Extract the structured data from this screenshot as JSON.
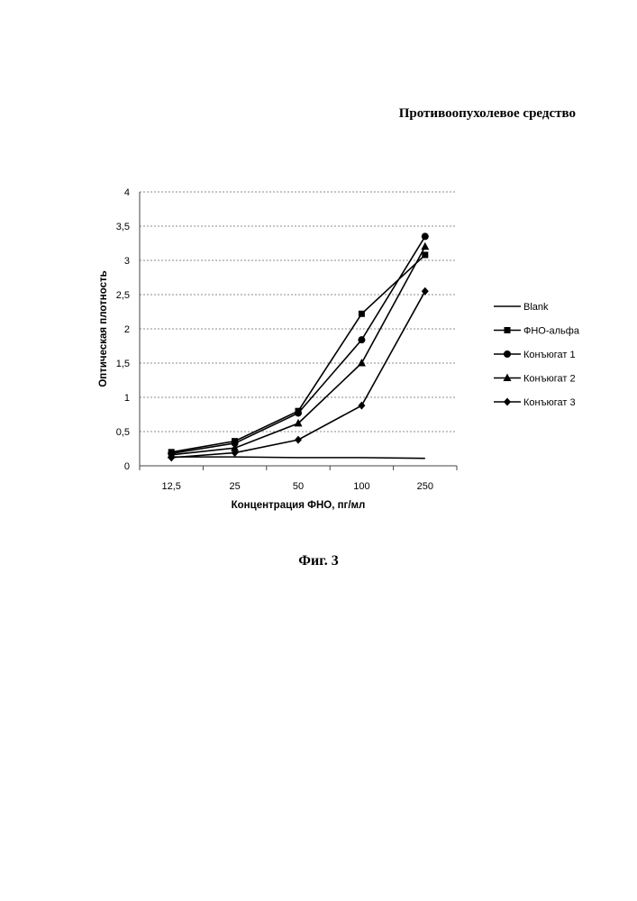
{
  "page": {
    "header": "Противоопухолевое средство",
    "figure_caption": "Фиг. 3"
  },
  "chart_data": {
    "type": "line",
    "title": "",
    "xlabel": "Концентрация ФНО, пг/мл",
    "ylabel": "Оптическая плотность",
    "categories": [
      "12,5",
      "25",
      "50",
      "100",
      "250"
    ],
    "ylim": [
      0,
      4
    ],
    "yticks": [
      "0",
      "0,5",
      "1",
      "1,5",
      "2",
      "2,5",
      "3",
      "3,5",
      "4"
    ],
    "grid": true,
    "legend_position": "right",
    "series": [
      {
        "name": "Blank",
        "marker": "none",
        "values": [
          0.13,
          0.13,
          0.12,
          0.12,
          0.11
        ]
      },
      {
        "name": "ФНО-альфа",
        "marker": "square",
        "values": [
          0.2,
          0.36,
          0.8,
          2.22,
          3.08
        ]
      },
      {
        "name": "Конъюгат 1",
        "marker": "circle",
        "values": [
          0.18,
          0.33,
          0.77,
          1.84,
          3.35
        ]
      },
      {
        "name": "Конъюгат 2",
        "marker": "triangle",
        "values": [
          0.16,
          0.26,
          0.62,
          1.5,
          3.2
        ]
      },
      {
        "name": "Конъюгат 3",
        "marker": "diamond",
        "values": [
          0.12,
          0.19,
          0.38,
          0.88,
          2.55
        ]
      }
    ]
  }
}
